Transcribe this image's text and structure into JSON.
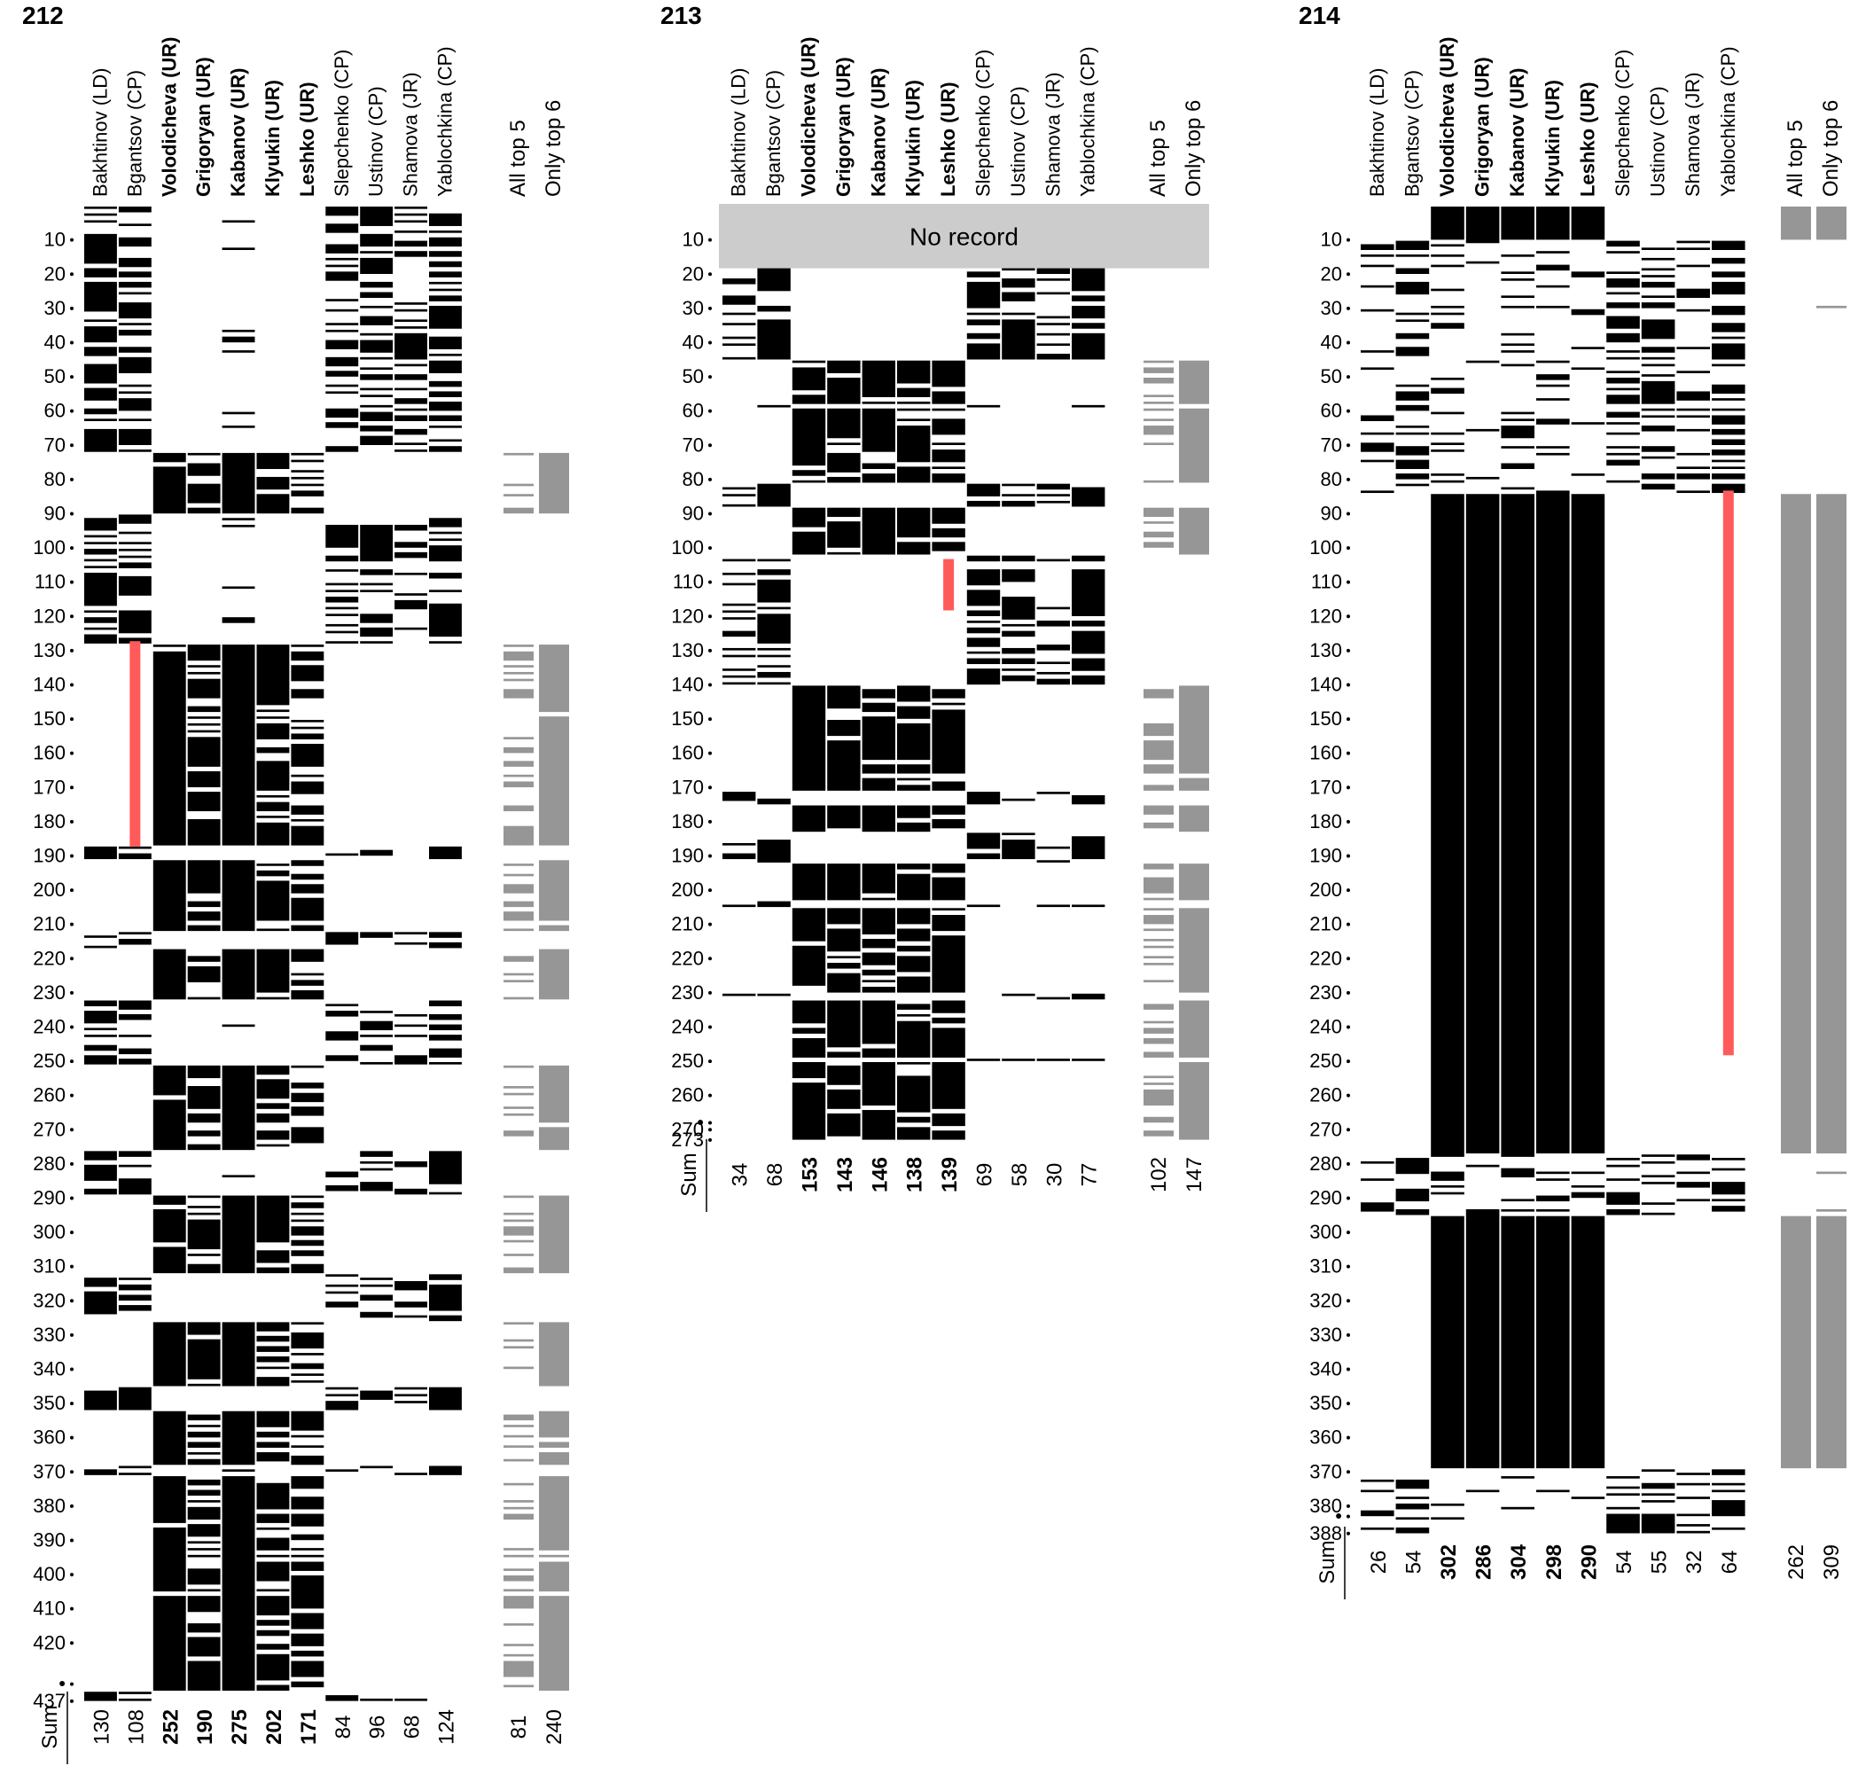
{
  "colors": {
    "vote": "#000000",
    "agg": "#969696",
    "highlight": "#ff5a5a",
    "norecord": "#cccccc"
  },
  "sum_label": "Sum",
  "panels": [
    {
      "title": "212",
      "voters": [
        {
          "name": "Bakhtinov (LD)",
          "bold": false,
          "sum": "130"
        },
        {
          "name": "Bgantsov (CP)",
          "bold": false,
          "sum": "108"
        },
        {
          "name": "Volodicheva (UR)",
          "bold": true,
          "sum": "252"
        },
        {
          "name": "Grigoryan (UR)",
          "bold": true,
          "sum": "190"
        },
        {
          "name": "Kabanov (UR)",
          "bold": true,
          "sum": "275"
        },
        {
          "name": "Klyukin (UR)",
          "bold": true,
          "sum": "202"
        },
        {
          "name": "Leshko (UR)",
          "bold": true,
          "sum": "171"
        },
        {
          "name": "Slepchenko (CP)",
          "bold": false,
          "sum": "84"
        },
        {
          "name": "Ustinov (CP)",
          "bold": false,
          "sum": "96"
        },
        {
          "name": "Shamova (JR)",
          "bold": false,
          "sum": "68"
        },
        {
          "name": "Yablochkina (CP)",
          "bold": false,
          "sum": "124"
        }
      ],
      "aggregates": [
        {
          "name": "All top 5",
          "sum": "81"
        },
        {
          "name": "Only top 6",
          "sum": "240"
        }
      ],
      "y_ticks": [
        "10",
        "20",
        "30",
        "40",
        "50",
        "60",
        "70",
        "80",
        "90",
        "100",
        "110",
        "120",
        "130",
        "140",
        "150",
        "160",
        "170",
        "180",
        "190",
        "200",
        "210",
        "220",
        "230",
        "240",
        "250",
        "260",
        "270",
        "280",
        "290",
        "300",
        "310",
        "320",
        "330",
        "340",
        "350",
        "360",
        "370",
        "380",
        "390",
        "400",
        "410",
        "420",
        "•",
        "437"
      ],
      "highlights": [
        {
          "column": 1,
          "start": 128,
          "end": 187
        }
      ],
      "no_record": null
    },
    {
      "title": "213",
      "voters": [
        {
          "name": "Bakhtinov (LD)",
          "bold": false,
          "sum": "34"
        },
        {
          "name": "Bgantsov (CP)",
          "bold": false,
          "sum": "68"
        },
        {
          "name": "Volodicheva (UR)",
          "bold": true,
          "sum": "153"
        },
        {
          "name": "Grigoryan (UR)",
          "bold": true,
          "sum": "143"
        },
        {
          "name": "Kabanov (UR)",
          "bold": true,
          "sum": "146"
        },
        {
          "name": "Klyukin (UR)",
          "bold": true,
          "sum": "138"
        },
        {
          "name": "Leshko (UR)",
          "bold": true,
          "sum": "139"
        },
        {
          "name": "Slepchenko (CP)",
          "bold": false,
          "sum": "69"
        },
        {
          "name": "Ustinov (CP)",
          "bold": false,
          "sum": "58"
        },
        {
          "name": "Shamova (JR)",
          "bold": false,
          "sum": "30"
        },
        {
          "name": "Yablochkina (CP)",
          "bold": false,
          "sum": "77"
        }
      ],
      "aggregates": [
        {
          "name": "All top 5",
          "sum": "102"
        },
        {
          "name": "Only top 6",
          "sum": "147"
        }
      ],
      "y_ticks": [
        "10",
        "20",
        "30",
        "40",
        "50",
        "60",
        "70",
        "80",
        "90",
        "100",
        "110",
        "120",
        "130",
        "140",
        "150",
        "160",
        "170",
        "180",
        "190",
        "200",
        "210",
        "220",
        "230",
        "240",
        "250",
        "260",
        "270",
        "•",
        "273"
      ],
      "highlights": [
        {
          "column": 6,
          "start": 104,
          "end": 118
        }
      ],
      "no_record": {
        "label": "No record",
        "start": 1,
        "end": 17
      }
    },
    {
      "title": "214",
      "voters": [
        {
          "name": "Bakhtinov (LD)",
          "bold": false,
          "sum": "26"
        },
        {
          "name": "Bgantsov (CP)",
          "bold": false,
          "sum": "54"
        },
        {
          "name": "Volodicheva (UR)",
          "bold": true,
          "sum": "302"
        },
        {
          "name": "Grigoryan (UR)",
          "bold": true,
          "sum": "286"
        },
        {
          "name": "Kabanov (UR)",
          "bold": true,
          "sum": "304"
        },
        {
          "name": "Klyukin (UR)",
          "bold": true,
          "sum": "298"
        },
        {
          "name": "Leshko (UR)",
          "bold": true,
          "sum": "290"
        },
        {
          "name": "Slepchenko (CP)",
          "bold": false,
          "sum": "54"
        },
        {
          "name": "Ustinov (CP)",
          "bold": false,
          "sum": "55"
        },
        {
          "name": "Shamova (JR)",
          "bold": false,
          "sum": "32"
        },
        {
          "name": "Yablochkina (CP)",
          "bold": false,
          "sum": "64"
        }
      ],
      "aggregates": [
        {
          "name": "All top 5",
          "sum": "262"
        },
        {
          "name": "Only top 6",
          "sum": "309"
        }
      ],
      "y_ticks": [
        "10",
        "20",
        "30",
        "40",
        "50",
        "60",
        "70",
        "80",
        "90",
        "100",
        "110",
        "120",
        "130",
        "140",
        "150",
        "160",
        "170",
        "180",
        "190",
        "200",
        "210",
        "220",
        "230",
        "240",
        "250",
        "260",
        "270",
        "280",
        "290",
        "300",
        "310",
        "320",
        "330",
        "340",
        "350",
        "360",
        "370",
        "380",
        "•",
        "388"
      ],
      "highlights": [
        {
          "column": 10,
          "start": 84,
          "end": 248
        }
      ],
      "no_record": null
    }
  ],
  "chart_data": [
    {
      "type": "heatmap",
      "title": "212",
      "rows": 437,
      "columns": [
        "Bakhtinov (LD)",
        "Bgantsov (CP)",
        "Volodicheva (UR)",
        "Grigoryan (UR)",
        "Kabanov (UR)",
        "Klyukin (UR)",
        "Leshko (UR)",
        "Slepchenko (CP)",
        "Ustinov (CP)",
        "Shamova (JR)",
        "Yablochkina (CP)",
        "All top 5",
        "Only top 6"
      ],
      "sums": [
        130,
        108,
        252,
        190,
        275,
        202,
        171,
        84,
        96,
        68,
        124,
        81,
        240
      ],
      "dense_blocks": [
        [
          73,
          90
        ],
        [
          129,
          187
        ],
        [
          192,
          212
        ],
        [
          218,
          232
        ],
        [
          252,
          276
        ],
        [
          290,
          312
        ],
        [
          327,
          345
        ],
        [
          353,
          368
        ],
        [
          372,
          434
        ]
      ],
      "red_marks": [
        {
          "column": "Bgantsov (CP)",
          "from": 128,
          "to": 187
        }
      ]
    },
    {
      "type": "heatmap",
      "title": "213",
      "rows": 273,
      "no_record_rows": [
        1,
        17
      ],
      "columns": [
        "Bakhtinov (LD)",
        "Bgantsov (CP)",
        "Volodicheva (UR)",
        "Grigoryan (UR)",
        "Kabanov (UR)",
        "Klyukin (UR)",
        "Leshko (UR)",
        "Slepchenko (CP)",
        "Ustinov (CP)",
        "Shamova (JR)",
        "Yablochkina (CP)",
        "All top 5",
        "Only top 6"
      ],
      "sums": [
        34,
        68,
        153,
        143,
        146,
        138,
        139,
        69,
        58,
        30,
        77,
        102,
        147
      ],
      "dense_blocks": [
        [
          46,
          58
        ],
        [
          60,
          81
        ],
        [
          89,
          102
        ],
        [
          141,
          171
        ],
        [
          176,
          183
        ],
        [
          193,
          203
        ],
        [
          206,
          230
        ],
        [
          233,
          249
        ],
        [
          251,
          273
        ]
      ],
      "red_marks": [
        {
          "column": "Leshko (UR)",
          "from": 104,
          "to": 118
        }
      ]
    },
    {
      "type": "heatmap",
      "title": "214",
      "rows": 388,
      "columns": [
        "Bakhtinov (LD)",
        "Bgantsov (CP)",
        "Volodicheva (UR)",
        "Grigoryan (UR)",
        "Kabanov (UR)",
        "Klyukin (UR)",
        "Leshko (UR)",
        "Slepchenko (CP)",
        "Ustinov (CP)",
        "Shamova (JR)",
        "Yablochkina (CP)",
        "All top 5",
        "Only top 6"
      ],
      "sums": [
        26,
        54,
        302,
        286,
        304,
        298,
        290,
        54,
        55,
        32,
        64,
        262,
        309
      ],
      "dense_blocks": [
        [
          1,
          10
        ],
        [
          85,
          277
        ],
        [
          296,
          369
        ]
      ],
      "red_marks": [
        {
          "column": "Yablochkina (CP)",
          "from": 84,
          "to": 248
        }
      ]
    }
  ]
}
